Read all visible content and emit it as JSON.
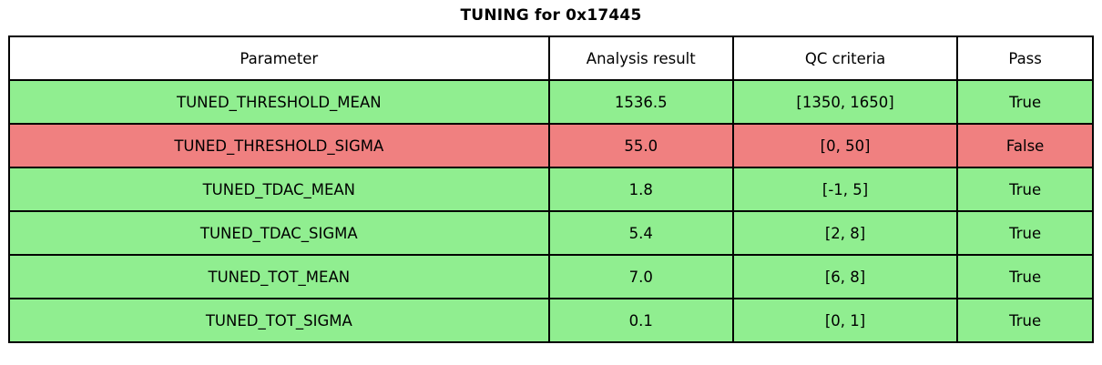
{
  "title": "TUNING for 0x17445",
  "colors": {
    "pass_row_bg": "#90EE90",
    "fail_row_bg": "#F08080",
    "header_bg": "#FFFFFF",
    "border": "#000000",
    "text": "#000000"
  },
  "table": {
    "headers": [
      "Parameter",
      "Analysis result",
      "QC criteria",
      "Pass"
    ],
    "rows": [
      {
        "parameter": "TUNED_THRESHOLD_MEAN",
        "result": "1536.5",
        "criteria": "[1350, 1650]",
        "pass": "True",
        "status": "pass"
      },
      {
        "parameter": "TUNED_THRESHOLD_SIGMA",
        "result": "55.0",
        "criteria": "[0, 50]",
        "pass": "False",
        "status": "fail"
      },
      {
        "parameter": "TUNED_TDAC_MEAN",
        "result": "1.8",
        "criteria": "[-1, 5]",
        "pass": "True",
        "status": "pass"
      },
      {
        "parameter": "TUNED_TDAC_SIGMA",
        "result": "5.4",
        "criteria": "[2, 8]",
        "pass": "True",
        "status": "pass"
      },
      {
        "parameter": "TUNED_TOT_MEAN",
        "result": "7.0",
        "criteria": "[6, 8]",
        "pass": "True",
        "status": "pass"
      },
      {
        "parameter": "TUNED_TOT_SIGMA",
        "result": "0.1",
        "criteria": "[0, 1]",
        "pass": "True",
        "status": "pass"
      }
    ]
  },
  "chart_data": {
    "type": "table",
    "title": "TUNING for 0x17445",
    "columns": [
      "Parameter",
      "Analysis result",
      "QC criteria",
      "Pass"
    ],
    "rows": [
      [
        "TUNED_THRESHOLD_MEAN",
        1536.5,
        "[1350, 1650]",
        "True"
      ],
      [
        "TUNED_THRESHOLD_SIGMA",
        55.0,
        "[0, 50]",
        "False"
      ],
      [
        "TUNED_TDAC_MEAN",
        1.8,
        "[-1, 5]",
        "True"
      ],
      [
        "TUNED_TDAC_SIGMA",
        5.4,
        "[2, 8]",
        "True"
      ],
      [
        "TUNED_TOT_MEAN",
        7.0,
        "[6, 8]",
        "True"
      ],
      [
        "TUNED_TOT_SIGMA",
        0.1,
        "[0, 1]",
        "True"
      ]
    ],
    "row_status": [
      "pass",
      "fail",
      "pass",
      "pass",
      "pass",
      "pass"
    ],
    "layout": {
      "title_position": "top-center",
      "cell_text_align": "center",
      "header_row_bg": "#FFFFFF",
      "pass_row_bg": "#90EE90",
      "fail_row_bg": "#F08080"
    }
  }
}
